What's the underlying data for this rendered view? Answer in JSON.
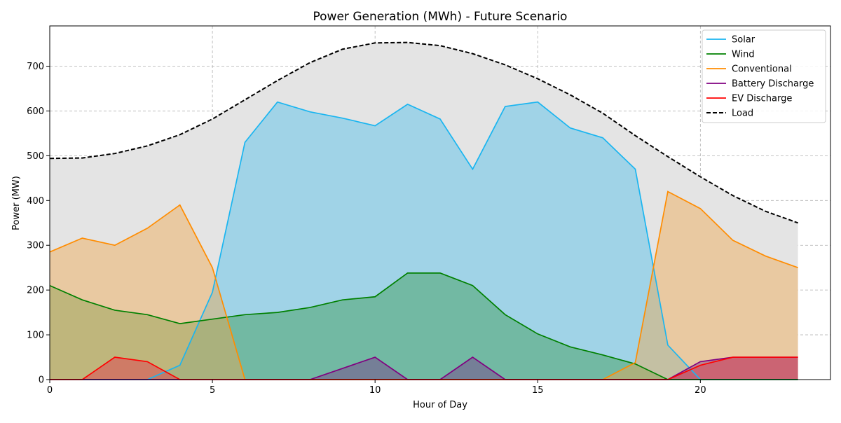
{
  "chart_data": {
    "type": "area",
    "title": "Power Generation (MWh) - Future Scenario",
    "xlabel": "Hour of Day",
    "ylabel": "Power (MW)",
    "xlim": [
      0,
      24
    ],
    "ylim": [
      0,
      790
    ],
    "xticks": [
      0,
      5,
      10,
      15,
      20
    ],
    "yticks": [
      0,
      100,
      200,
      300,
      400,
      500,
      600,
      700
    ],
    "grid": true,
    "legend_position": "top-right",
    "x": [
      0,
      1,
      2,
      3,
      4,
      5,
      6,
      7,
      8,
      9,
      10,
      11,
      12,
      13,
      14,
      15,
      16,
      17,
      18,
      19,
      20,
      21,
      22,
      23
    ],
    "series": [
      {
        "name": "Solar",
        "color": "#1ab5f0",
        "fill": "#89cde8",
        "fill_opacity": 0.75,
        "values": [
          0,
          0,
          0,
          0,
          32,
          195,
          530,
          620,
          598,
          584,
          567,
          615,
          582,
          470,
          610,
          620,
          562,
          540,
          470,
          77,
          0,
          0,
          0,
          0
        ]
      },
      {
        "name": "Wind",
        "color": "#008000",
        "fill": "#3a9a50",
        "fill_opacity": 0.45,
        "values": [
          210,
          178,
          155,
          145,
          125,
          135,
          145,
          150,
          161,
          178,
          185,
          238,
          238,
          210,
          145,
          102,
          73,
          55,
          35,
          0,
          0,
          0,
          0,
          0
        ]
      },
      {
        "name": "Conventional",
        "color": "#ff8c00",
        "fill": "#f0a850",
        "fill_opacity": 0.45,
        "values": [
          285,
          316,
          300,
          338,
          390,
          250,
          0,
          0,
          0,
          0,
          0,
          0,
          0,
          0,
          0,
          0,
          0,
          0,
          38,
          420,
          382,
          311,
          276,
          250
        ]
      },
      {
        "name": "Battery Discharge",
        "color": "#800080",
        "fill": "#7a3a8a",
        "fill_opacity": 0.45,
        "values": [
          0,
          0,
          0,
          0,
          0,
          0,
          0,
          0,
          0,
          25,
          50,
          0,
          0,
          50,
          0,
          0,
          0,
          0,
          0,
          0,
          40,
          50,
          50,
          50
        ]
      },
      {
        "name": "EV Discharge",
        "color": "#ff0000",
        "fill": "#e04050",
        "fill_opacity": 0.5,
        "values": [
          0,
          0,
          50,
          40,
          0,
          0,
          0,
          0,
          0,
          0,
          0,
          0,
          0,
          0,
          0,
          0,
          0,
          0,
          0,
          0,
          32,
          50,
          50,
          50
        ]
      },
      {
        "name": "Load",
        "color": "#000000",
        "fill": "#e4e4e4",
        "fill_opacity": 1,
        "dashed": true,
        "values": [
          494,
          495,
          505,
          522,
          547,
          582,
          625,
          668,
          708,
          738,
          752,
          753,
          746,
          728,
          703,
          672,
          636,
          595,
          545,
          498,
          453,
          411,
          376,
          350
        ]
      }
    ]
  }
}
